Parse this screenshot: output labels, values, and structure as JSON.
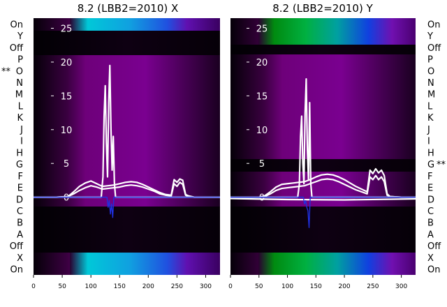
{
  "chart_data": [
    {
      "type": "line",
      "panel": "left",
      "title": "8.2 (LBB2=2010) X",
      "x_ticks": [
        0,
        50,
        100,
        150,
        200,
        250,
        300
      ],
      "xlim": [
        0,
        325
      ],
      "ylim": [
        -11.5,
        26.5
      ],
      "y_ticks": [
        0,
        5,
        10,
        15,
        20,
        25
      ],
      "row_labels": [
        "On",
        "Y",
        "Off",
        "P",
        "O",
        "N",
        "M",
        "L",
        "K",
        "J",
        "I",
        "H",
        "G",
        "F",
        "E",
        "D",
        "C",
        "B",
        "A",
        "Off",
        "X",
        "On"
      ],
      "row_marker": {
        "row": "O",
        "text": "**",
        "side": "left"
      },
      "series": [
        {
          "color": "#ffffff",
          "x": [
            0,
            40,
            60,
            70,
            80,
            90,
            100,
            110,
            120,
            130,
            140,
            150,
            160,
            170,
            180,
            190,
            200,
            210,
            220,
            230,
            240,
            245,
            250,
            255,
            260,
            265,
            270,
            280,
            300,
            325
          ],
          "y": [
            0,
            0,
            0.1,
            0.8,
            1.6,
            2.1,
            2.4,
            2.0,
            1.6,
            1.7,
            1.8,
            2.0,
            2.2,
            2.3,
            2.2,
            1.9,
            1.5,
            1.1,
            0.7,
            0.4,
            0.3,
            2.6,
            2.2,
            2.7,
            2.5,
            0.4,
            0.2,
            0,
            0,
            0
          ]
        },
        {
          "color": "#ffffff",
          "x": [
            0,
            40,
            60,
            70,
            80,
            90,
            100,
            110,
            120,
            130,
            140,
            150,
            160,
            170,
            180,
            190,
            200,
            210,
            220,
            230,
            240,
            245,
            250,
            255,
            260,
            265,
            270,
            280,
            300,
            325
          ],
          "y": [
            0,
            0,
            0.1,
            0.5,
            1.0,
            1.4,
            1.7,
            1.5,
            1.2,
            1.3,
            1.4,
            1.5,
            1.7,
            1.8,
            1.7,
            1.5,
            1.2,
            0.9,
            0.5,
            0.3,
            0.2,
            2.0,
            1.6,
            2.2,
            1.9,
            0.3,
            0.1,
            0,
            0,
            0
          ]
        },
        {
          "color": "#ffffff",
          "x": [
            0,
            118,
            121,
            123,
            125,
            127,
            129,
            131,
            133,
            135,
            137,
            139,
            141,
            143,
            325
          ],
          "y": [
            0,
            0,
            3.0,
            12.0,
            16.5,
            8.0,
            3.0,
            14.0,
            19.5,
            10.0,
            4.0,
            9.0,
            2.0,
            0,
            0
          ]
        },
        {
          "color": "#2030e0",
          "x": [
            0,
            128,
            130,
            132,
            134,
            136,
            138,
            140,
            325
          ],
          "y": [
            0,
            0,
            -1.5,
            -0.5,
            -2.5,
            -1.0,
            -3.0,
            0,
            0
          ]
        }
      ]
    },
    {
      "type": "line",
      "panel": "right",
      "title": "8.2 (LBB2=2010) Y",
      "x_ticks": [
        0,
        50,
        100,
        150,
        200,
        250,
        300
      ],
      "xlim": [
        0,
        325
      ],
      "ylim": [
        -11.5,
        26.5
      ],
      "y_ticks": [
        0,
        5,
        10,
        15,
        20,
        25
      ],
      "row_labels": [
        "On",
        "Y",
        "Off",
        "P",
        "O",
        "N",
        "M",
        "L",
        "K",
        "J",
        "I",
        "H",
        "G",
        "F",
        "E",
        "D",
        "C",
        "B",
        "A",
        "Off",
        "X",
        "On"
      ],
      "row_marker": {
        "row": "G",
        "text": "**",
        "side": "right"
      },
      "series": [
        {
          "color": "#ffffff",
          "x": [
            0,
            50,
            60,
            70,
            80,
            90,
            100,
            110,
            120,
            130,
            140,
            150,
            160,
            170,
            180,
            190,
            200,
            210,
            220,
            230,
            240,
            245,
            250,
            255,
            260,
            265,
            270,
            275,
            280,
            300,
            325
          ],
          "y": [
            0,
            0,
            0.2,
            0.8,
            1.5,
            1.9,
            2.0,
            2.1,
            2.2,
            2.3,
            2.6,
            3.0,
            3.3,
            3.4,
            3.3,
            3.0,
            2.6,
            2.1,
            1.6,
            1.2,
            0.8,
            4.0,
            3.5,
            4.2,
            3.6,
            4.0,
            3.2,
            0.5,
            0.1,
            0,
            0
          ]
        },
        {
          "color": "#ffffff",
          "x": [
            0,
            50,
            60,
            70,
            80,
            90,
            100,
            110,
            120,
            130,
            140,
            150,
            160,
            170,
            180,
            190,
            200,
            210,
            220,
            230,
            240,
            245,
            250,
            255,
            260,
            265,
            270,
            275,
            280,
            300,
            325
          ],
          "y": [
            0,
            0,
            0.1,
            0.5,
            1.0,
            1.3,
            1.4,
            1.5,
            1.6,
            1.7,
            2.0,
            2.3,
            2.6,
            2.7,
            2.6,
            2.3,
            1.9,
            1.5,
            1.1,
            0.8,
            0.5,
            3.0,
            2.6,
            3.2,
            2.6,
            3.0,
            2.3,
            0.3,
            0.1,
            0,
            0
          ]
        },
        {
          "color": "#ffffff",
          "x": [
            0,
            118,
            121,
            123,
            125,
            127,
            129,
            131,
            133,
            135,
            137,
            139,
            141,
            143,
            325
          ],
          "y": [
            0,
            0,
            2.0,
            9.0,
            12.0,
            5.0,
            2.0,
            12.5,
            17.5,
            7.0,
            2.5,
            14.0,
            2.0,
            0,
            0
          ]
        },
        {
          "color": "#ffffff",
          "x": [
            0,
            100,
            200,
            325
          ],
          "y": [
            -0.2,
            -0.35,
            -0.4,
            -0.25
          ]
        },
        {
          "color": "#2030e0",
          "x": [
            0,
            128,
            130,
            132,
            134,
            136,
            138,
            140,
            325
          ],
          "y": [
            0,
            0,
            -1.0,
            -0.5,
            -1.5,
            -2.0,
            -4.5,
            0,
            0
          ]
        }
      ]
    }
  ]
}
